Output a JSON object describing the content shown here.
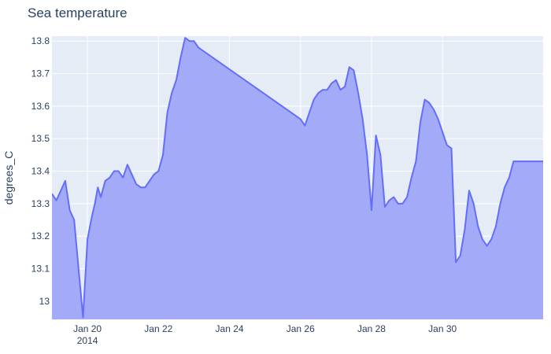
{
  "chart_data": {
    "type": "area",
    "title": "Sea temperature",
    "xlabel": "",
    "ylabel": "degrees_C",
    "x_range": [
      "2014-01-19T00:00",
      "2014-02-01T20:00"
    ],
    "ylim": [
      12.944,
      13.815
    ],
    "x_ticks": [
      {
        "date": "2014-01-20",
        "label": "Jan 20",
        "sublabel": "2014"
      },
      {
        "date": "2014-01-22",
        "label": "Jan 22"
      },
      {
        "date": "2014-01-24",
        "label": "Jan 24"
      },
      {
        "date": "2014-01-26",
        "label": "Jan 26"
      },
      {
        "date": "2014-01-28",
        "label": "Jan 28"
      },
      {
        "date": "2014-01-30",
        "label": "Jan 30"
      }
    ],
    "y_ticks": [
      13,
      13.1,
      13.2,
      13.3,
      13.4,
      13.5,
      13.6,
      13.7,
      13.8
    ],
    "grid": true,
    "legend": "none",
    "colors": {
      "line": "#636efa",
      "fill": "#a3aaf8",
      "plot_bg": "#e5ecf6",
      "grid": "#ffffff"
    },
    "series": [
      {
        "x": [
          "2014-01-19T00:00",
          "2014-01-19T03:00",
          "2014-01-19T06:00",
          "2014-01-19T09:00",
          "2014-01-19T12:00",
          "2014-01-19T15:00",
          "2014-01-19T18:00",
          "2014-01-19T21:00",
          "2014-01-20T00:00",
          "2014-01-20T03:00",
          "2014-01-20T05:00",
          "2014-01-20T07:00",
          "2014-01-20T09:00",
          "2014-01-20T12:00",
          "2014-01-20T15:00",
          "2014-01-20T18:00",
          "2014-01-20T21:00",
          "2014-01-21T00:00",
          "2014-01-21T03:00",
          "2014-01-21T06:00",
          "2014-01-21T09:00",
          "2014-01-21T12:00",
          "2014-01-21T15:00",
          "2014-01-21T18:00",
          "2014-01-21T21:00",
          "2014-01-22T00:00",
          "2014-01-22T03:00",
          "2014-01-22T06:00",
          "2014-01-22T09:00",
          "2014-01-22T12:00",
          "2014-01-22T15:00",
          "2014-01-22T18:00",
          "2014-01-22T21:00",
          "2014-01-23T00:00",
          "2014-01-23T03:00",
          "2014-01-26T00:00",
          "2014-01-26T03:00",
          "2014-01-26T06:00",
          "2014-01-26T09:00",
          "2014-01-26T12:00",
          "2014-01-26T15:00",
          "2014-01-26T18:00",
          "2014-01-26T21:00",
          "2014-01-27T00:00",
          "2014-01-27T03:00",
          "2014-01-27T06:00",
          "2014-01-27T09:00",
          "2014-01-27T12:00",
          "2014-01-27T15:00",
          "2014-01-27T18:00",
          "2014-01-27T21:00",
          "2014-01-28T00:00",
          "2014-01-28T03:00",
          "2014-01-28T06:00",
          "2014-01-28T09:00",
          "2014-01-28T12:00",
          "2014-01-28T15:00",
          "2014-01-28T18:00",
          "2014-01-28T21:00",
          "2014-01-29T00:00",
          "2014-01-29T03:00",
          "2014-01-29T06:00",
          "2014-01-29T09:00",
          "2014-01-29T12:00",
          "2014-01-29T15:00",
          "2014-01-29T18:00",
          "2014-01-29T21:00",
          "2014-01-30T00:00",
          "2014-01-30T03:00",
          "2014-01-30T06:00",
          "2014-01-30T09:00",
          "2014-01-30T12:00",
          "2014-01-30T15:00",
          "2014-01-30T18:00",
          "2014-01-30T21:00",
          "2014-01-31T00:00",
          "2014-01-31T03:00",
          "2014-01-31T06:00",
          "2014-01-31T09:00",
          "2014-01-31T12:00",
          "2014-01-31T15:00",
          "2014-01-31T18:00",
          "2014-01-31T21:00",
          "2014-02-01T00:00",
          "2014-02-01T03:00",
          "2014-02-01T06:00",
          "2014-02-01T09:00",
          "2014-02-01T12:00",
          "2014-02-01T15:00",
          "2014-02-01T18:00",
          "2014-02-01T20:00"
        ],
        "y": [
          13.33,
          13.31,
          13.34,
          13.37,
          13.28,
          13.25,
          13.1,
          12.95,
          13.19,
          13.26,
          13.3,
          13.35,
          13.32,
          13.37,
          13.38,
          13.4,
          13.4,
          13.38,
          13.42,
          13.39,
          13.36,
          13.35,
          13.35,
          13.37,
          13.39,
          13.4,
          13.45,
          13.58,
          13.64,
          13.68,
          13.75,
          13.81,
          13.8,
          13.8,
          13.78,
          13.56,
          13.54,
          13.58,
          13.62,
          13.64,
          13.65,
          13.65,
          13.67,
          13.68,
          13.65,
          13.66,
          13.72,
          13.71,
          13.64,
          13.56,
          13.45,
          13.28,
          13.51,
          13.45,
          13.29,
          13.31,
          13.32,
          13.3,
          13.3,
          13.32,
          13.38,
          13.43,
          13.55,
          13.62,
          13.61,
          13.59,
          13.56,
          13.52,
          13.48,
          13.47,
          13.12,
          13.14,
          13.22,
          13.34,
          13.3,
          13.23,
          13.19,
          13.17,
          13.19,
          13.23,
          13.3,
          13.35,
          13.38,
          13.43,
          13.43,
          13.43,
          13.43,
          13.43,
          13.43,
          13.43,
          13.43
        ]
      }
    ]
  }
}
